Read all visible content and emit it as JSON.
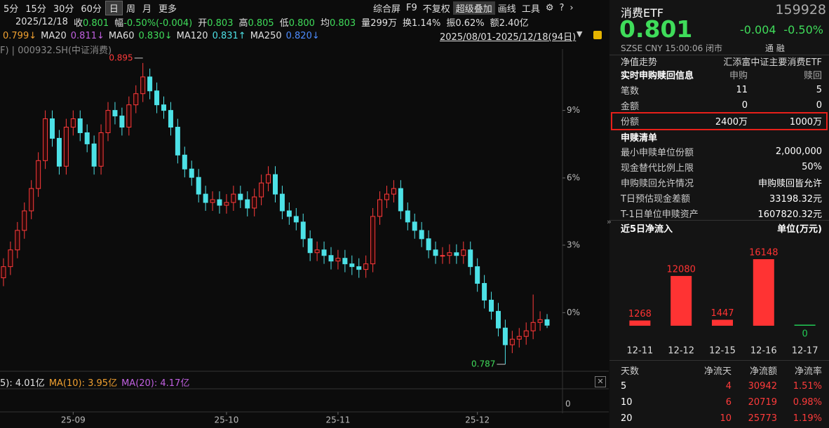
{
  "toolbar": {
    "periods": [
      "5分",
      "15分",
      "30分",
      "60分",
      "日",
      "周",
      "月",
      "更多"
    ],
    "tools": [
      "综合屏",
      "F9",
      "不复权",
      "超级叠加",
      "画线",
      "工具"
    ]
  },
  "quote_row": {
    "date": "2025/12/18",
    "items": [
      [
        "收",
        "0.801"
      ],
      [
        "幅",
        "-0.50%(-0.004)"
      ],
      [
        "开",
        "0.803"
      ],
      [
        "高",
        "0.805"
      ],
      [
        "低",
        "0.800"
      ],
      [
        "均",
        "0.803"
      ],
      [
        "量",
        "299万"
      ],
      [
        "换",
        "1.14%"
      ],
      [
        "振",
        "0.62%"
      ],
      [
        "额",
        "2.40亿"
      ]
    ]
  },
  "ma_row": {
    "first": "0.799↓",
    "items": [
      [
        "MA20",
        "0.811↓"
      ],
      [
        "MA60",
        "0.830↓"
      ],
      [
        "MA120",
        "0.831↑"
      ],
      [
        "MA250",
        "0.820↓"
      ]
    ],
    "range": "2025/08/01-2025/12/18(94日)"
  },
  "index_label": "F) | 000932.SH(中证消费)",
  "volume_row": {
    "vol": "5): 4.01亿",
    "ma": [
      "MA(10): 3.95亿",
      "MA(20): 4.17亿"
    ],
    "axis": "0"
  },
  "quote": {
    "name": "消费ETF",
    "code": "159928",
    "price": "0.801",
    "change": "-0.004",
    "change_pct": "-0.50%",
    "status": "SZSE  CNY  15:00:06  闭市",
    "tags": "通  融"
  },
  "info": {
    "nav": [
      "净值走势",
      "汇添富中证主要消费ETF"
    ],
    "realtime": {
      "title": "实时申购赎回信息",
      "cols": [
        "申购",
        "赎回"
      ],
      "rows": [
        [
          "笔数",
          "11",
          "5"
        ],
        [
          "金额",
          "0",
          "0"
        ],
        [
          "份额",
          "2400万",
          "1000万"
        ]
      ]
    },
    "list_title": "申赎清单",
    "list": [
      [
        "最小申赎单位份额",
        "2,000,000"
      ],
      [
        "现金替代比例上限",
        "50%"
      ],
      [
        "申购赎回允许情况",
        "申购赎回皆允许"
      ],
      [
        "T日预估现金差额",
        "33198.32元"
      ],
      [
        "T-1日单位申赎资产",
        "1607820.32元"
      ]
    ]
  },
  "flow_table": {
    "header": [
      "天数",
      "净流天",
      "净流额",
      "净流率"
    ],
    "rows": [
      [
        "5",
        "4",
        "30942",
        "1.51%"
      ],
      [
        "10",
        "6",
        "20719",
        "0.98%"
      ],
      [
        "20",
        "10",
        "25773",
        "1.19%"
      ]
    ]
  },
  "chart_data": [
    {
      "type": "candlestick",
      "categories": [
        null,
        null,
        null,
        null,
        null,
        null,
        null,
        null,
        null,
        null,
        "25-09",
        null,
        null,
        null,
        null,
        null,
        null,
        null,
        null,
        null,
        null,
        null,
        null,
        null,
        null,
        null,
        null,
        null,
        null,
        null,
        null,
        null,
        "25-10",
        null,
        null,
        null,
        null,
        null,
        null,
        null,
        null,
        null,
        null,
        null,
        null,
        null,
        null,
        null,
        "25-11",
        null,
        null,
        null,
        null,
        null,
        null,
        null,
        null,
        null,
        null,
        null,
        null,
        null,
        null,
        null,
        null,
        null,
        null,
        null,
        "25-12",
        null,
        null,
        null,
        null,
        null,
        null,
        null,
        null,
        null,
        null
      ],
      "open": [
        0.818,
        0.822,
        0.828,
        0.835,
        0.842,
        0.85,
        0.86,
        0.875,
        0.868,
        0.858,
        0.872,
        0.875,
        0.87,
        0.866,
        0.858,
        0.87,
        0.878,
        0.876,
        0.872,
        0.88,
        0.884,
        0.89,
        0.885,
        0.88,
        0.878,
        0.872,
        0.862,
        0.857,
        0.854,
        0.848,
        0.845,
        0.846,
        0.844,
        0.845,
        0.848,
        0.846,
        0.843,
        0.847,
        0.852,
        0.855,
        0.848,
        0.842,
        0.84,
        0.838,
        0.832,
        0.827,
        0.828,
        0.826,
        0.824,
        0.825,
        0.823,
        0.822,
        0.821,
        0.823,
        0.84,
        0.846,
        0.848,
        0.85,
        0.842,
        0.838,
        0.835,
        0.832,
        0.828,
        0.826,
        0.826,
        0.827,
        0.826,
        0.828,
        0.822,
        0.816,
        0.81,
        0.806,
        0.8,
        0.794,
        0.796,
        0.797,
        0.799,
        0.802,
        0.803
      ],
      "high": [
        0.825,
        0.831,
        0.838,
        0.845,
        0.853,
        0.863,
        0.878,
        0.878,
        0.871,
        0.875,
        0.878,
        0.878,
        0.873,
        0.869,
        0.873,
        0.881,
        0.881,
        0.879,
        0.883,
        0.887,
        0.895,
        0.893,
        0.888,
        0.883,
        0.881,
        0.875,
        0.865,
        0.86,
        0.857,
        0.851,
        0.849,
        0.849,
        0.848,
        0.851,
        0.851,
        0.849,
        0.85,
        0.855,
        0.858,
        0.858,
        0.851,
        0.845,
        0.843,
        0.841,
        0.835,
        0.831,
        0.831,
        0.829,
        0.828,
        0.828,
        0.826,
        0.825,
        0.826,
        0.843,
        0.849,
        0.851,
        0.853,
        0.853,
        0.845,
        0.841,
        0.838,
        0.835,
        0.831,
        0.829,
        0.83,
        0.83,
        0.831,
        0.831,
        0.825,
        0.819,
        0.813,
        0.809,
        0.803,
        0.799,
        0.8,
        0.802,
        0.812,
        0.806,
        0.805
      ],
      "low": [
        0.815,
        0.819,
        0.825,
        0.832,
        0.839,
        0.847,
        0.857,
        0.865,
        0.855,
        0.855,
        0.869,
        0.867,
        0.863,
        0.855,
        0.855,
        0.867,
        0.873,
        0.869,
        0.869,
        0.877,
        0.881,
        0.882,
        0.877,
        0.875,
        0.869,
        0.859,
        0.854,
        0.851,
        0.845,
        0.842,
        0.842,
        0.841,
        0.841,
        0.842,
        0.843,
        0.84,
        0.84,
        0.844,
        0.849,
        0.845,
        0.839,
        0.837,
        0.835,
        0.829,
        0.824,
        0.824,
        0.823,
        0.821,
        0.821,
        0.82,
        0.819,
        0.818,
        0.818,
        0.82,
        0.837,
        0.843,
        0.845,
        0.839,
        0.835,
        0.832,
        0.829,
        0.825,
        0.823,
        0.823,
        0.823,
        0.823,
        0.823,
        0.819,
        0.813,
        0.807,
        0.803,
        0.797,
        0.787,
        0.791,
        0.793,
        0.794,
        0.796,
        0.799,
        0.8
      ],
      "close": [
        0.822,
        0.828,
        0.835,
        0.842,
        0.85,
        0.86,
        0.875,
        0.868,
        0.858,
        0.872,
        0.875,
        0.87,
        0.866,
        0.858,
        0.87,
        0.878,
        0.876,
        0.872,
        0.88,
        0.884,
        0.89,
        0.885,
        0.88,
        0.878,
        0.872,
        0.862,
        0.857,
        0.854,
        0.848,
        0.845,
        0.846,
        0.844,
        0.845,
        0.848,
        0.846,
        0.843,
        0.847,
        0.852,
        0.855,
        0.848,
        0.842,
        0.84,
        0.838,
        0.832,
        0.827,
        0.828,
        0.826,
        0.824,
        0.825,
        0.823,
        0.822,
        0.821,
        0.823,
        0.84,
        0.846,
        0.848,
        0.85,
        0.842,
        0.838,
        0.835,
        0.832,
        0.828,
        0.826,
        0.826,
        0.827,
        0.826,
        0.828,
        0.822,
        0.816,
        0.81,
        0.806,
        0.8,
        0.794,
        0.796,
        0.797,
        0.799,
        0.802,
        0.803,
        0.801
      ],
      "up_color": "#ff3b3b",
      "down_color": "#4de1e6",
      "annotations": [
        "0.895",
        "0.787"
      ],
      "ylim": [
        0.7845,
        0.9
      ],
      "yticks": [
        {
          "value": 0.878,
          "label": "9%"
        },
        {
          "value": 0.8538,
          "label": "6%"
        },
        {
          "value": 0.8297,
          "label": "3%"
        },
        {
          "value": 0.8055,
          "label": "0%"
        }
      ]
    },
    {
      "type": "bar",
      "title": "近5日净流入",
      "unit": "单位(万元)",
      "categories": [
        "12-11",
        "12-12",
        "12-15",
        "12-16",
        "12-17"
      ],
      "values": [
        1268,
        12080,
        1447,
        16148,
        0
      ],
      "colors": [
        "#ff3333",
        "#ff3333",
        "#ff3333",
        "#ff3333",
        "#22cc55"
      ],
      "ylim": [
        0,
        17000
      ]
    }
  ]
}
